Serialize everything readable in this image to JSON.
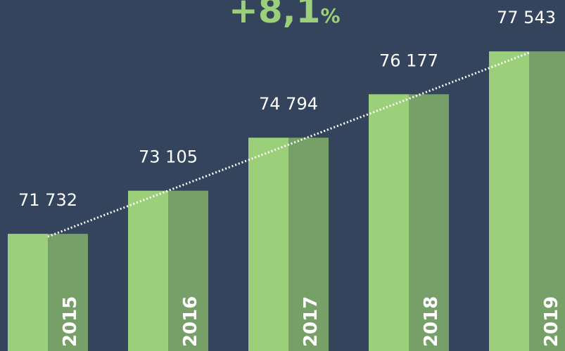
{
  "chart_data": {
    "type": "bar",
    "headline": "+8,1",
    "headline_unit": "%",
    "categories": [
      "2015",
      "2016",
      "2017",
      "2018",
      "2019"
    ],
    "values": [
      71732,
      73105,
      74794,
      76177,
      77543
    ],
    "value_labels": [
      "71 732",
      "73 105",
      "74 794",
      "76 177",
      "77 543"
    ],
    "color": "#9ccf7a",
    "shade_color": "#76a068",
    "trend_color": "#ffffff",
    "ylim": [
      68000,
      79000
    ]
  }
}
